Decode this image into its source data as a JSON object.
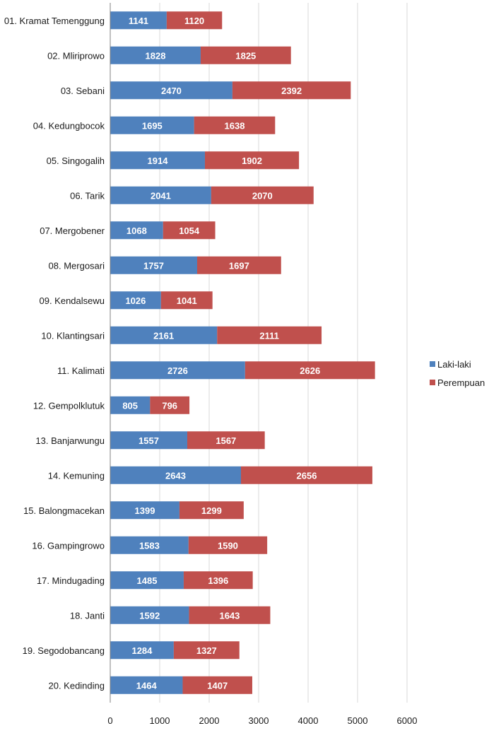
{
  "chart_data": {
    "type": "bar",
    "orientation": "horizontal",
    "stacked": true,
    "categories": [
      "01. Kramat Temenggung",
      "02. Mliriprowo",
      "03. Sebani",
      "04. Kedungbocok",
      "05. Singogalih",
      "06. Tarik",
      "07. Mergobener",
      "08. Mergosari",
      "09. Kendalsewu",
      "10. Klantingsari",
      "11. Kalimati",
      "12. Gempolklutuk",
      "13. Banjarwungu",
      "14. Kemuning",
      "15. Balongmacekan",
      "16. Gampingrowo",
      "17. Mindugading",
      "18. Janti",
      "19. Segodobancang",
      "20. Kedinding"
    ],
    "series": [
      {
        "name": "Laki-laki",
        "color": "#4f81bd",
        "values": [
          1141,
          1828,
          2470,
          1695,
          1914,
          2041,
          1068,
          1757,
          1026,
          2161,
          2726,
          805,
          1557,
          2643,
          1399,
          1583,
          1485,
          1592,
          1284,
          1464
        ]
      },
      {
        "name": "Perempuan",
        "color": "#c0504d",
        "values": [
          1120,
          1825,
          2392,
          1638,
          1902,
          2070,
          1054,
          1697,
          1041,
          2111,
          2626,
          796,
          1567,
          2656,
          1299,
          1590,
          1396,
          1643,
          1327,
          1407
        ]
      }
    ],
    "xlim": [
      0,
      6000
    ],
    "xticks": [
      "0",
      "1000",
      "2000",
      "3000",
      "4000",
      "5000",
      "6000"
    ],
    "grid": "vertical",
    "legend": "right",
    "data_labels": true,
    "gridline_color": "#d9d9d9",
    "axis_color": "#808080"
  }
}
